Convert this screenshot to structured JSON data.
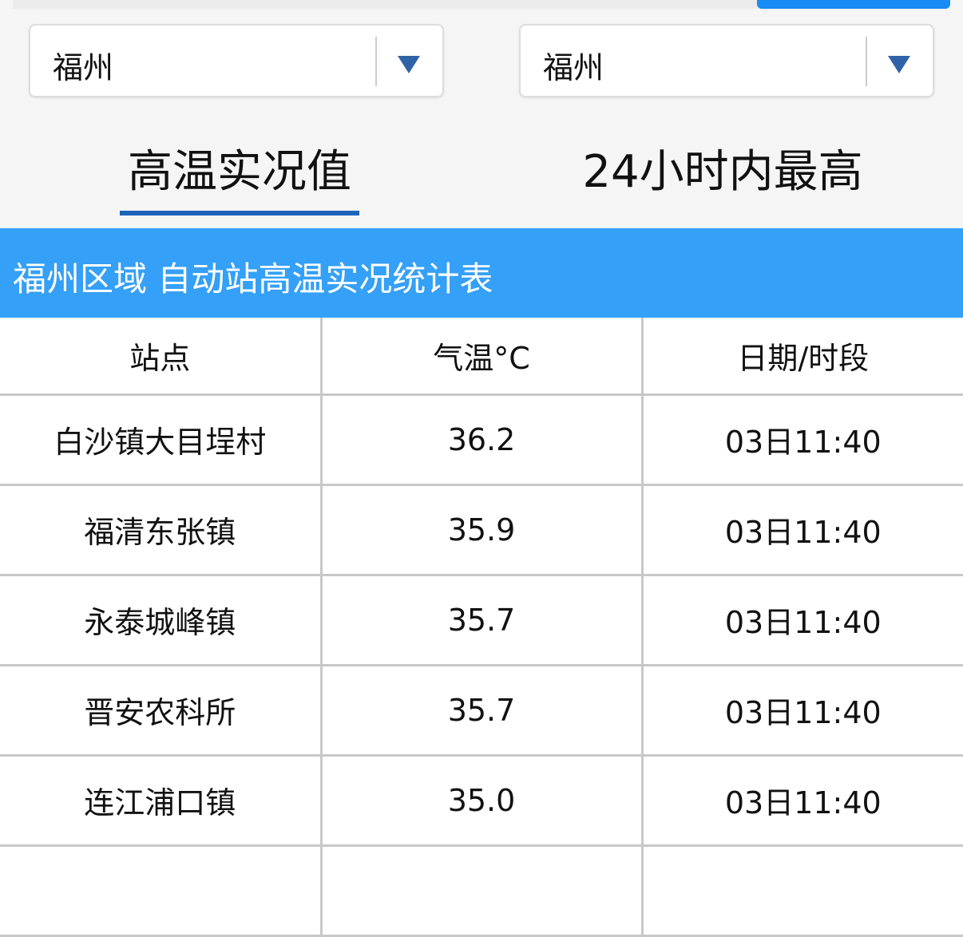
{
  "selectors": [
    {
      "value": "福州"
    },
    {
      "value": "福州"
    }
  ],
  "tabs": [
    {
      "label": "高温实况值",
      "active": true
    },
    {
      "label": "24小时内最高",
      "active": false
    }
  ],
  "table_title": "福州区域 自动站高温实况统计表",
  "columns": [
    "站点",
    "气温°C",
    "日期/时段"
  ],
  "rows": [
    [
      "白沙镇大目埕村",
      "36.2",
      "03日11:40"
    ],
    [
      "福清东张镇",
      "35.9",
      "03日11:40"
    ],
    [
      "永泰城峰镇",
      "35.7",
      "03日11:40"
    ],
    [
      "晋安农科所",
      "35.7",
      "03日11:40"
    ],
    [
      "连江浦口镇",
      "35.0",
      "03日11:40"
    ]
  ],
  "colors": {
    "accent": "#35a0f7",
    "tab_underline": "#1d64b9",
    "arrow": "#2f63a8"
  }
}
